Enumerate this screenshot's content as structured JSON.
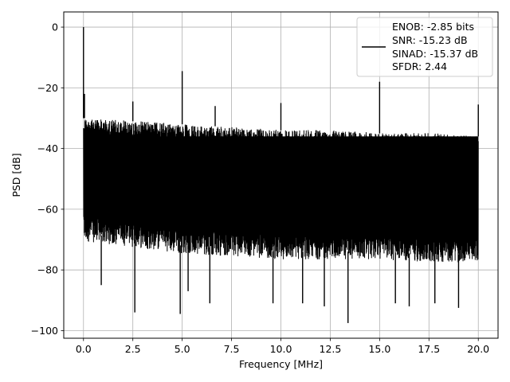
{
  "chart_data": {
    "type": "line",
    "title": "",
    "xlabel": "Frequency [MHz]",
    "ylabel": "PSD [dB]",
    "xlim": [
      -1.0,
      21.0
    ],
    "ylim": [
      -102.5,
      5.0
    ],
    "x_ticks": [
      0.0,
      2.5,
      5.0,
      7.5,
      10.0,
      12.5,
      15.0,
      17.5,
      20.0
    ],
    "x_tick_labels": [
      "0.0",
      "2.5",
      "5.0",
      "7.5",
      "10.0",
      "12.5",
      "15.0",
      "17.5",
      "20.0"
    ],
    "y_ticks": [
      0,
      -20,
      -40,
      -60,
      -80,
      -100
    ],
    "y_tick_labels": [
      "0",
      "−20",
      "−40",
      "−60",
      "−80",
      "−100"
    ],
    "grid": true,
    "legend_position": "top-right",
    "line_color": "#000000",
    "legend": [
      "ENOB: -2.85 bits",
      "SNR: -15.23 dB",
      "SINAD: -15.37 dB",
      "SFDR: 2.44"
    ],
    "series": [
      {
        "noise_floor": {
          "x": [
            0.0,
            2.5,
            5.0,
            7.5,
            10.0,
            12.5,
            15.0,
            17.5,
            20.0
          ],
          "upper": [
            -30,
            -31,
            -32,
            -33,
            -34,
            -34,
            -35,
            -35,
            -36
          ],
          "lower": [
            -68,
            -70,
            -72,
            -73,
            -74,
            -74,
            -74,
            -75,
            -75
          ]
        },
        "peaks": [
          {
            "x": 0.0,
            "y": 0
          },
          {
            "x": 0.05,
            "y": -22
          },
          {
            "x": 2.5,
            "y": -24.5
          },
          {
            "x": 5.0,
            "y": -14.5
          },
          {
            "x": 6.67,
            "y": -26
          },
          {
            "x": 10.0,
            "y": -25
          },
          {
            "x": 15.0,
            "y": -18
          },
          {
            "x": 20.0,
            "y": -25.5
          }
        ],
        "dips": [
          {
            "x": 0.9,
            "y": -85
          },
          {
            "x": 2.6,
            "y": -94
          },
          {
            "x": 4.9,
            "y": -94.5
          },
          {
            "x": 5.3,
            "y": -87
          },
          {
            "x": 6.4,
            "y": -91
          },
          {
            "x": 9.6,
            "y": -91
          },
          {
            "x": 11.1,
            "y": -91
          },
          {
            "x": 12.2,
            "y": -92
          },
          {
            "x": 13.4,
            "y": -97.5
          },
          {
            "x": 15.8,
            "y": -91
          },
          {
            "x": 16.5,
            "y": -92
          },
          {
            "x": 17.8,
            "y": -91
          },
          {
            "x": 19.0,
            "y": -92.5
          }
        ]
      }
    ]
  }
}
